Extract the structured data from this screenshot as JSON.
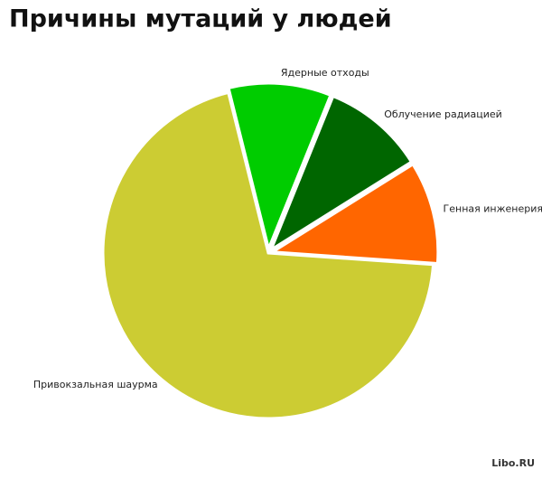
{
  "chart_data": {
    "type": "pie",
    "title": "Причины мутаций у людей",
    "categories": [
      "Ядерные отходы",
      "Облучение радиацией",
      "Генная инженерия",
      "Привокзальная шаурма"
    ],
    "values": [
      10,
      10,
      10,
      70
    ],
    "colors": [
      "#00cc00",
      "#006600",
      "#ff6600",
      "#cccc33"
    ],
    "annotation": "Libo.RU"
  }
}
